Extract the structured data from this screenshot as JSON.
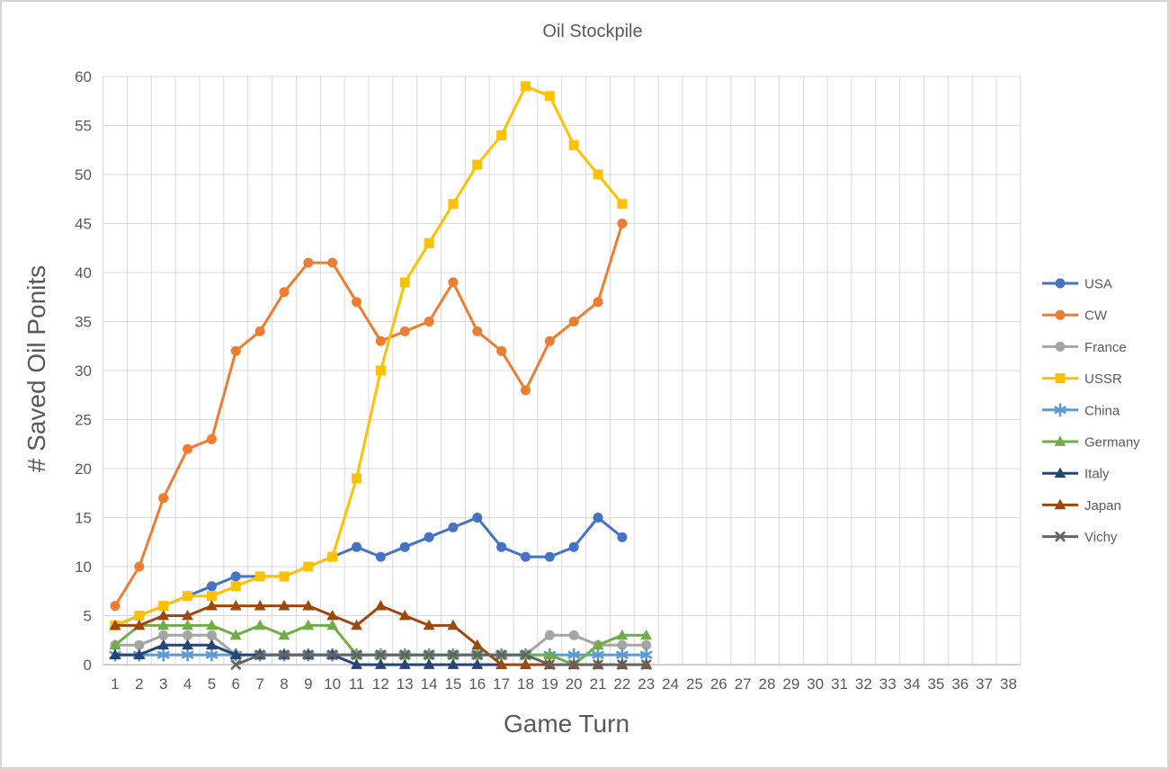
{
  "window": {
    "background": "#ffffff",
    "border_color": "#d5d5d5"
  },
  "chart_data": {
    "type": "line",
    "title": "Oil Stockpile",
    "xlabel": "Game Turn",
    "ylabel": "# Saved Oil Ponits",
    "grid": true,
    "legend_position": "right",
    "xlim_categories": [
      1,
      38
    ],
    "ylim": [
      0,
      60
    ],
    "x_ticks": [
      1,
      2,
      3,
      4,
      5,
      6,
      7,
      8,
      9,
      10,
      11,
      12,
      13,
      14,
      15,
      16,
      17,
      18,
      19,
      20,
      21,
      22,
      23,
      24,
      25,
      26,
      27,
      28,
      29,
      30,
      31,
      32,
      33,
      34,
      35,
      36,
      37,
      38
    ],
    "y_ticks": [
      0,
      5,
      10,
      15,
      20,
      25,
      30,
      35,
      40,
      45,
      50,
      55,
      60
    ],
    "colors": {
      "grid": "#d9d9d9",
      "axis_line": "#bfbfbf",
      "text": "#595959"
    },
    "series": [
      {
        "name": "USA",
        "color": "#4472C4",
        "marker": "circle",
        "start_turn": 1,
        "values": [
          4,
          5,
          6,
          7,
          8,
          9,
          9,
          9,
          10,
          11,
          12,
          11,
          12,
          13,
          14,
          15,
          12,
          11,
          11,
          12,
          15,
          13
        ]
      },
      {
        "name": "CW",
        "color": "#ED7D31",
        "marker": "circle",
        "start_turn": 1,
        "values": [
          6,
          10,
          17,
          22,
          23,
          32,
          34,
          38,
          41,
          41,
          37,
          33,
          34,
          35,
          39,
          34,
          32,
          28,
          33,
          35,
          37,
          45
        ]
      },
      {
        "name": "France",
        "color": "#A5A5A5",
        "marker": "circle",
        "start_turn": 1,
        "values": [
          2,
          2,
          3,
          3,
          3,
          1,
          1,
          1,
          1,
          1,
          1,
          1,
          1,
          1,
          1,
          1,
          1,
          1,
          3,
          3,
          2,
          2,
          2
        ]
      },
      {
        "name": "USSR",
        "color": "#FFC000",
        "marker": "square",
        "start_turn": 1,
        "values": [
          4,
          5,
          6,
          7,
          7,
          8,
          9,
          9,
          10,
          11,
          19,
          30,
          39,
          43,
          47,
          51,
          54,
          59,
          58,
          53,
          50,
          47
        ]
      },
      {
        "name": "China",
        "color": "#5B9BD5",
        "marker": "asterisk",
        "start_turn": 1,
        "values": [
          1,
          1,
          1,
          1,
          1,
          1,
          1,
          1,
          1,
          1,
          1,
          1,
          1,
          1,
          1,
          1,
          1,
          1,
          1,
          1,
          1,
          1,
          1
        ]
      },
      {
        "name": "Germany",
        "color": "#70AD47",
        "marker": "triangle",
        "start_turn": 1,
        "values": [
          2,
          4,
          4,
          4,
          4,
          3,
          4,
          3,
          4,
          4,
          1,
          1,
          1,
          1,
          1,
          1,
          1,
          1,
          1,
          0,
          2,
          3,
          3
        ]
      },
      {
        "name": "Italy",
        "color": "#264478",
        "marker": "triangle",
        "start_turn": 1,
        "values": [
          1,
          1,
          2,
          2,
          2,
          1,
          1,
          1,
          1,
          1,
          0,
          0,
          0,
          0,
          0,
          0,
          0,
          0,
          0,
          0,
          0,
          0,
          0
        ]
      },
      {
        "name": "Japan",
        "color": "#9E480E",
        "marker": "triangle",
        "start_turn": 1,
        "values": [
          4,
          4,
          5,
          5,
          6,
          6,
          6,
          6,
          6,
          5,
          4,
          6,
          5,
          4,
          4,
          2,
          0,
          0,
          0,
          0,
          0,
          0,
          0
        ]
      },
      {
        "name": "Vichy",
        "color": "#636363",
        "marker": "x",
        "start_turn": 6,
        "values": [
          0,
          1,
          1,
          1,
          1,
          1,
          1,
          1,
          1,
          1,
          1,
          1,
          1,
          0,
          0,
          0,
          0,
          0
        ]
      }
    ]
  }
}
